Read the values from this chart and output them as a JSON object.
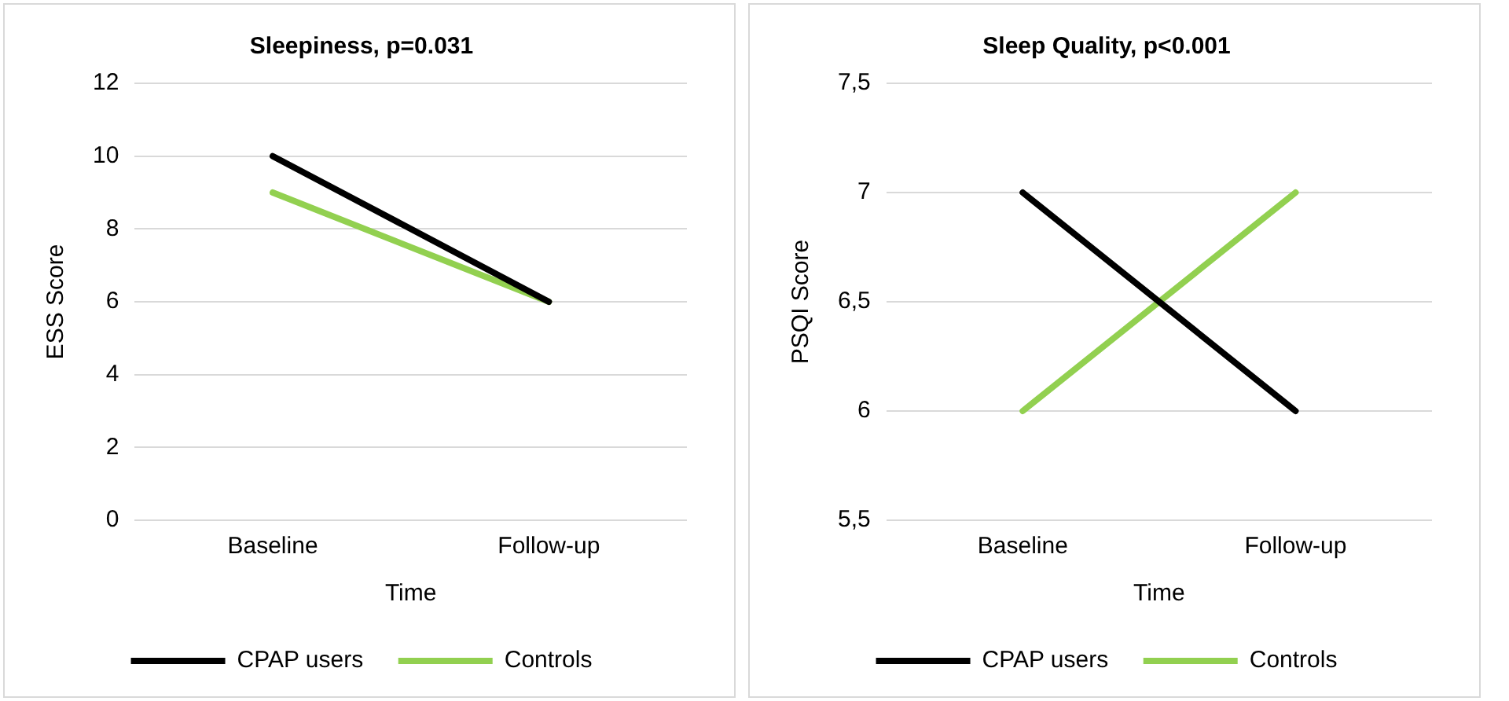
{
  "chart_data": [
    {
      "type": "line",
      "title": "Sleepiness, p=0.031",
      "xlabel": "Time",
      "ylabel": "ESS Score",
      "categories": [
        "Baseline",
        "Follow-up"
      ],
      "series": [
        {
          "name": "CPAP users",
          "color": "#000000",
          "values": [
            10,
            6
          ]
        },
        {
          "name": "Controls",
          "color": "#92d050",
          "values": [
            9,
            6
          ]
        }
      ],
      "ylim": [
        0,
        12
      ],
      "yticks": [
        0,
        2,
        4,
        6,
        8,
        10,
        12
      ],
      "grid": "y",
      "legend": "bottom",
      "marker": "none"
    },
    {
      "type": "line",
      "title": "Sleep Quality, p<0.001",
      "xlabel": "Time",
      "ylabel": "PSQI Score",
      "categories": [
        "Baseline",
        "Follow-up"
      ],
      "series": [
        {
          "name": "CPAP users",
          "color": "#000000",
          "values": [
            7,
            6
          ]
        },
        {
          "name": "Controls",
          "color": "#92d050",
          "values": [
            6,
            7
          ]
        }
      ],
      "ylim": [
        5.5,
        7.5
      ],
      "yticks": [
        {
          "value": 5.5,
          "label": "5,5"
        },
        7,
        {
          "value": 6.5,
          "label": "6,5"
        },
        6,
        {
          "value": 7.5,
          "label": "7,5"
        }
      ],
      "grid": "y",
      "legend": "bottom",
      "marker": "none"
    }
  ]
}
